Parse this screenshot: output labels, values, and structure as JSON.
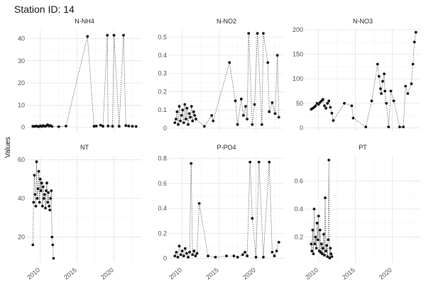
{
  "figure": {
    "title": "Station ID: 14",
    "ylabel": "Values"
  },
  "chart_data": [
    {
      "type": "line",
      "title": "N-NH4",
      "xlim": [
        2008.2,
        2023.8
      ],
      "ylim": [
        -2,
        44
      ],
      "yticks": [
        0,
        10,
        20,
        30,
        40
      ],
      "x": [
        2009.0,
        2009.2,
        2009.4,
        2009.6,
        2009.8,
        2010.0,
        2010.2,
        2010.4,
        2010.6,
        2010.8,
        2011.0,
        2011.2,
        2011.4,
        2011.6,
        2012.5,
        2013.5,
        2016.4,
        2017.3,
        2017.6,
        2018.2,
        2018.5,
        2019.1,
        2019.2,
        2019.8,
        2020.0,
        2020.7,
        2021.3,
        2021.6,
        2022.0,
        2022.5,
        2023.0
      ],
      "y": [
        0.5,
        0.4,
        0.6,
        0.5,
        0.3,
        0.7,
        0.4,
        0.8,
        0.5,
        0.6,
        1.2,
        0.6,
        0.8,
        0.4,
        0.3,
        0.6,
        41,
        0.5,
        0.6,
        1.0,
        0.5,
        41.5,
        0.6,
        0.5,
        41.5,
        0.5,
        41.5,
        0.8,
        0.6,
        0.5,
        0.4
      ]
    },
    {
      "type": "line",
      "title": "N-NO2",
      "xlim": [
        2008.2,
        2023.8
      ],
      "ylim": [
        -0.02,
        0.54
      ],
      "yticks": [
        0.0,
        0.1,
        0.2,
        0.3,
        0.4,
        0.5
      ],
      "x": [
        2009.0,
        2009.15,
        2009.3,
        2009.45,
        2009.6,
        2009.75,
        2009.9,
        2010.05,
        2010.2,
        2010.35,
        2010.5,
        2010.65,
        2010.8,
        2010.95,
        2011.1,
        2011.25,
        2011.4,
        2011.55,
        2011.7,
        2011.85,
        2013.0,
        2014.0,
        2014.2,
        2016.4,
        2017.2,
        2017.5,
        2018.0,
        2018.3,
        2018.6,
        2018.8,
        2019.0,
        2019.5,
        2019.8,
        2020.2,
        2020.8,
        2021.0,
        2021.6,
        2021.8,
        2022.2,
        2022.6,
        2022.9,
        2023.1
      ],
      "y": [
        0.03,
        0.05,
        0.09,
        0.02,
        0.12,
        0.04,
        0.07,
        0.1,
        0.03,
        0.13,
        0.05,
        0.11,
        0.02,
        0.08,
        0.06,
        0.12,
        0.04,
        0.09,
        0.07,
        0.05,
        0.01,
        0.07,
        0.04,
        0.36,
        0.15,
        0.02,
        0.16,
        0.07,
        0.12,
        0.05,
        0.52,
        0.02,
        0.13,
        0.52,
        0.02,
        0.52,
        0.36,
        0.09,
        0.14,
        0.08,
        0.4,
        0.06
      ]
    },
    {
      "type": "line",
      "title": "N-NO3",
      "xlim": [
        2008.2,
        2023.8
      ],
      "ylim": [
        -8,
        200
      ],
      "yticks": [
        0,
        50,
        100,
        150,
        200
      ],
      "x": [
        2009.0,
        2009.2,
        2009.4,
        2009.6,
        2009.8,
        2010.0,
        2010.2,
        2010.4,
        2010.6,
        2010.8,
        2011.0,
        2011.2,
        2011.4,
        2011.6,
        2011.8,
        2012.0,
        2013.5,
        2014.5,
        2014.7,
        2016.4,
        2017.2,
        2018.0,
        2018.2,
        2018.4,
        2018.5,
        2018.7,
        2018.9,
        2019.0,
        2019.2,
        2019.5,
        2019.8,
        2020.2,
        2021.0,
        2021.5,
        2021.8,
        2022.1,
        2022.6,
        2022.8,
        2023.0,
        2023.2
      ],
      "y": [
        38,
        40,
        42,
        45,
        50,
        48,
        52,
        55,
        58,
        45,
        40,
        50,
        55,
        42,
        30,
        15,
        50,
        45,
        20,
        2,
        55,
        130,
        105,
        80,
        70,
        95,
        110,
        75,
        50,
        2,
        75,
        55,
        2,
        2,
        85,
        70,
        90,
        130,
        175,
        195
      ]
    },
    {
      "type": "line",
      "title": "NT",
      "xlim": [
        2008.2,
        2023.8
      ],
      "ylim": [
        7,
        62
      ],
      "yticks": [
        20,
        40,
        60
      ],
      "x": [
        2009.0,
        2009.1,
        2009.2,
        2009.3,
        2009.4,
        2009.5,
        2009.6,
        2009.7,
        2009.8,
        2009.9,
        2010.0,
        2010.1,
        2010.2,
        2010.3,
        2010.4,
        2010.5,
        2010.6,
        2010.7,
        2010.8,
        2010.9,
        2011.0,
        2011.1,
        2011.2,
        2011.3,
        2011.4,
        2011.5,
        2011.6,
        2011.7,
        2011.8
      ],
      "y": [
        16,
        38,
        52,
        42,
        36,
        59,
        40,
        45,
        54,
        38,
        50,
        44,
        48,
        36,
        46,
        40,
        42,
        35,
        44,
        48,
        38,
        43,
        36,
        34,
        40,
        44,
        20,
        16,
        9
      ]
    },
    {
      "type": "line",
      "title": "P-PO4",
      "xlim": [
        2008.2,
        2023.8
      ],
      "ylim": [
        -0.03,
        0.82
      ],
      "yticks": [
        0.0,
        0.2,
        0.4,
        0.6,
        0.8
      ],
      "x": [
        2009.0,
        2009.2,
        2009.4,
        2009.6,
        2009.8,
        2010.0,
        2010.2,
        2010.4,
        2010.6,
        2010.8,
        2011.0,
        2011.2,
        2011.4,
        2011.6,
        2011.8,
        2012.0,
        2012.3,
        2013.5,
        2014.5,
        2016.0,
        2017.0,
        2017.5,
        2018.2,
        2018.5,
        2018.8,
        2019.2,
        2019.5,
        2020.0,
        2020.4,
        2021.0,
        2021.8,
        2022.2,
        2022.5,
        2022.8,
        2023.1
      ],
      "y": [
        0.02,
        0.05,
        0.01,
        0.1,
        0.03,
        0.06,
        0.02,
        0.08,
        0.04,
        0.01,
        0.05,
        0.76,
        0.03,
        0.06,
        0.02,
        0.04,
        0.44,
        0.02,
        0.01,
        0.02,
        0.02,
        0.01,
        0.03,
        0.05,
        0.02,
        0.77,
        0.32,
        0.01,
        0.77,
        0.01,
        0.77,
        0.05,
        0.02,
        0.06,
        0.13
      ]
    },
    {
      "type": "line",
      "title": "PT",
      "xlim": [
        2008.2,
        2023.8
      ],
      "ylim": [
        0.02,
        0.78
      ],
      "yticks": [
        0.2,
        0.4,
        0.6
      ],
      "x": [
        2009.0,
        2009.1,
        2009.2,
        2009.3,
        2009.4,
        2009.5,
        2009.6,
        2009.7,
        2009.8,
        2009.9,
        2010.0,
        2010.1,
        2010.2,
        2010.3,
        2010.4,
        2010.5,
        2010.6,
        2010.7,
        2010.8,
        2010.9,
        2011.0,
        2011.1,
        2011.2,
        2011.3,
        2011.4,
        2011.5,
        2011.6,
        2011.7,
        2011.8
      ],
      "y": [
        0.15,
        0.1,
        0.25,
        0.08,
        0.4,
        0.15,
        0.2,
        0.12,
        0.3,
        0.18,
        0.35,
        0.1,
        0.25,
        0.09,
        0.15,
        0.08,
        0.12,
        0.22,
        0.07,
        0.48,
        0.1,
        0.14,
        0.06,
        0.18,
        0.75,
        0.05,
        0.12,
        0.08,
        0.06
      ]
    }
  ]
}
